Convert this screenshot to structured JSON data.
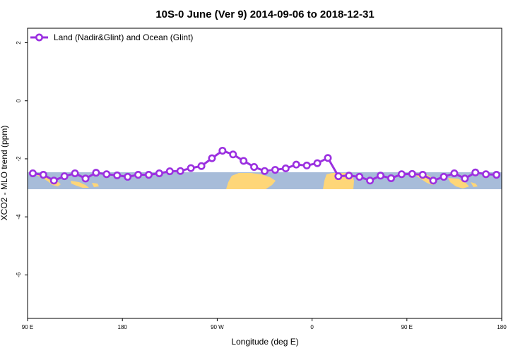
{
  "chart_data": {
    "type": "line",
    "title": "10S-0 June (Ver 9)   2014-09-06 to 2018-12-31",
    "xlabel": "Longitude (deg E)",
    "ylabel": "XCO2 - MLO trend (ppm)",
    "xlim": [
      90,
      450
    ],
    "ylim": [
      -7.5,
      2.5
    ],
    "x_ticks": [
      {
        "value": 90,
        "label": "90 E"
      },
      {
        "value": 162,
        "label": "180"
      },
      {
        "value": 234,
        "label": "90 W"
      },
      {
        "value": 306,
        "label": "0"
      },
      {
        "value": 378,
        "label": "90 E"
      },
      {
        "value": 450,
        "label": "180"
      }
    ],
    "y_ticks": [
      {
        "value": 2,
        "label": "2"
      },
      {
        "value": 0,
        "label": "0"
      },
      {
        "value": -2,
        "label": "-2"
      },
      {
        "value": -4,
        "label": "-4"
      },
      {
        "value": -6,
        "label": "-6"
      }
    ],
    "grid": false,
    "legend_position": "top-left",
    "map_strip": {
      "y_top": -2.52,
      "y_bottom": -3.05,
      "ocean_color": "#a7bcd9",
      "land_color": "#fed678"
    },
    "series": [
      {
        "name": "Land (Nadir&Glint) and Ocean (Glint)",
        "color": "#9b30e0",
        "x": [
          94,
          102,
          110,
          118,
          126,
          134,
          142,
          150,
          158,
          166,
          174,
          182,
          190,
          198,
          206,
          214,
          222,
          230,
          238,
          246,
          254,
          262,
          270,
          278,
          286,
          294,
          302,
          310,
          318,
          326,
          334,
          342,
          350,
          358,
          366,
          374,
          382,
          390,
          398,
          406,
          414,
          422,
          430,
          438,
          446
        ],
        "y": [
          -2.5,
          -2.55,
          -2.75,
          -2.6,
          -2.5,
          -2.68,
          -2.48,
          -2.53,
          -2.57,
          -2.62,
          -2.55,
          -2.55,
          -2.5,
          -2.43,
          -2.42,
          -2.32,
          -2.25,
          -1.98,
          -1.72,
          -1.85,
          -2.07,
          -2.28,
          -2.42,
          -2.38,
          -2.33,
          -2.2,
          -2.23,
          -2.15,
          -1.97,
          -2.6,
          -2.58,
          -2.62,
          -2.75,
          -2.58,
          -2.67,
          -2.53,
          -2.52,
          -2.55,
          -2.75,
          -2.62,
          -2.5,
          -2.68,
          -2.47,
          -2.53,
          -2.55
        ]
      }
    ]
  }
}
